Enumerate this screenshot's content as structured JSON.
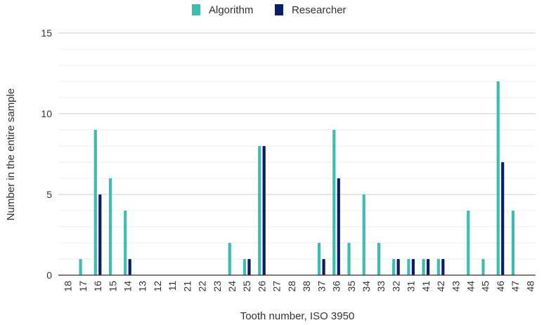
{
  "chart_data": {
    "type": "bar",
    "xlabel": "Tooth number, ISO 3950",
    "ylabel": "Number in the entire sample",
    "ylim": [
      0,
      15
    ],
    "yticks": [
      "0",
      "5",
      "10",
      "15"
    ],
    "grid": true,
    "legend_position": "top-center",
    "categories": [
      "18",
      "17",
      "16",
      "15",
      "14",
      "13",
      "12",
      "11",
      "21",
      "22",
      "23",
      "24",
      "25",
      "26",
      "27",
      "28",
      "38",
      "37",
      "36",
      "35",
      "34",
      "33",
      "32",
      "31",
      "41",
      "42",
      "43",
      "44",
      "45",
      "46",
      "47",
      "48"
    ],
    "series": [
      {
        "name": "Algorithm",
        "color": "#3dbdb1",
        "values": [
          0,
          1,
          9,
          6,
          4,
          0,
          0,
          0,
          0,
          0,
          0,
          2,
          1,
          8,
          0,
          0,
          0,
          2,
          9,
          2,
          5,
          2,
          1,
          1,
          1,
          1,
          0,
          4,
          1,
          12,
          4,
          0
        ]
      },
      {
        "name": "Researcher",
        "color": "#0c1c6b",
        "values": [
          0,
          0,
          5,
          0,
          1,
          0,
          0,
          0,
          0,
          0,
          0,
          0,
          1,
          8,
          0,
          0,
          0,
          1,
          6,
          0,
          0,
          0,
          1,
          1,
          1,
          1,
          0,
          0,
          0,
          7,
          0,
          0
        ]
      }
    ]
  }
}
